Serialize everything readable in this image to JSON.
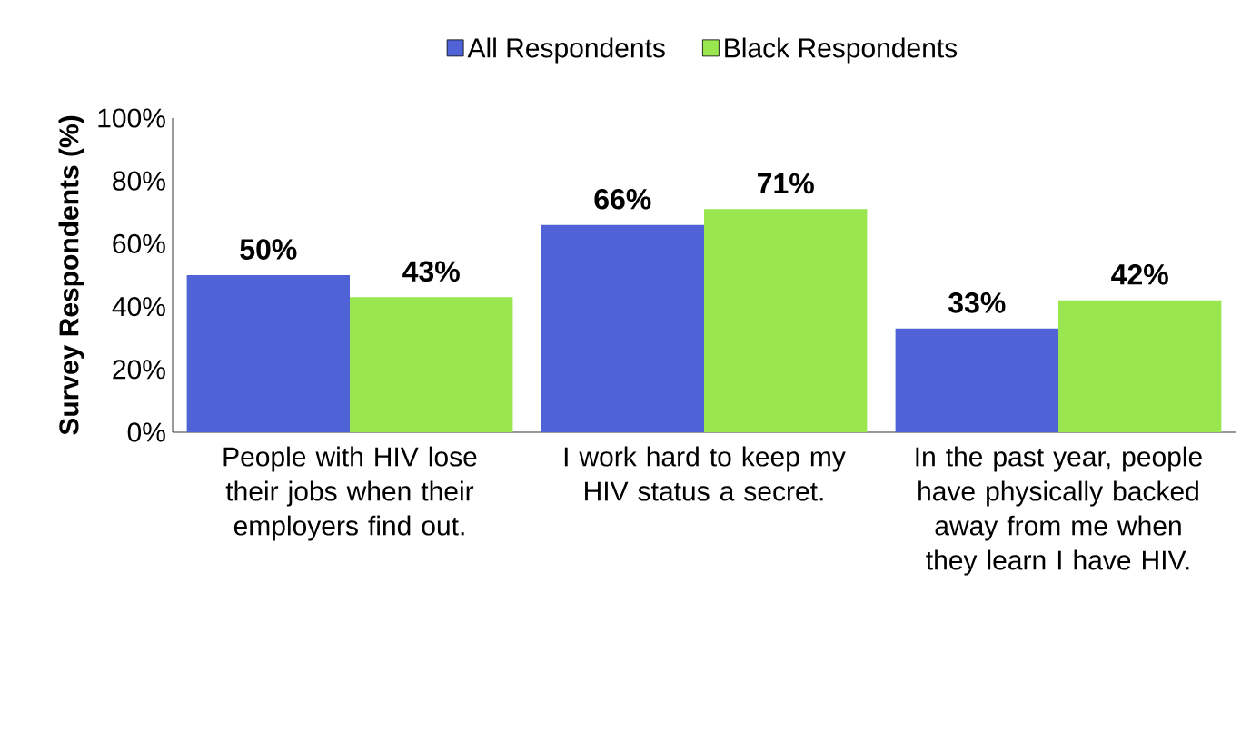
{
  "chart_data": {
    "type": "bar",
    "ylabel": "Survey Respondents (%)",
    "categories": [
      "People with HIV lose their jobs when their employers find out.",
      "I work hard to keep my HIV status a secret.",
      "In the past year, people have physically backed away from me when they learn I have HIV."
    ],
    "series": [
      {
        "name": "All Respondents",
        "color": "#4f63d6",
        "values": [
          50,
          66,
          33
        ],
        "value_labels": [
          "50%",
          "66%",
          "33%"
        ]
      },
      {
        "name": "Black Respondents",
        "color": "#99e64e",
        "values": [
          43,
          71,
          42
        ],
        "value_labels": [
          "43%",
          "71%",
          "42%"
        ]
      }
    ],
    "ylim": [
      0,
      100
    ],
    "yticks": [
      {
        "value": 0,
        "label": "0%"
      },
      {
        "value": 20,
        "label": "20%"
      },
      {
        "value": 40,
        "label": "40%"
      },
      {
        "value": 60,
        "label": "60%"
      },
      {
        "value": 80,
        "label": "80%"
      },
      {
        "value": 100,
        "label": "100%"
      }
    ],
    "legend": "top"
  }
}
